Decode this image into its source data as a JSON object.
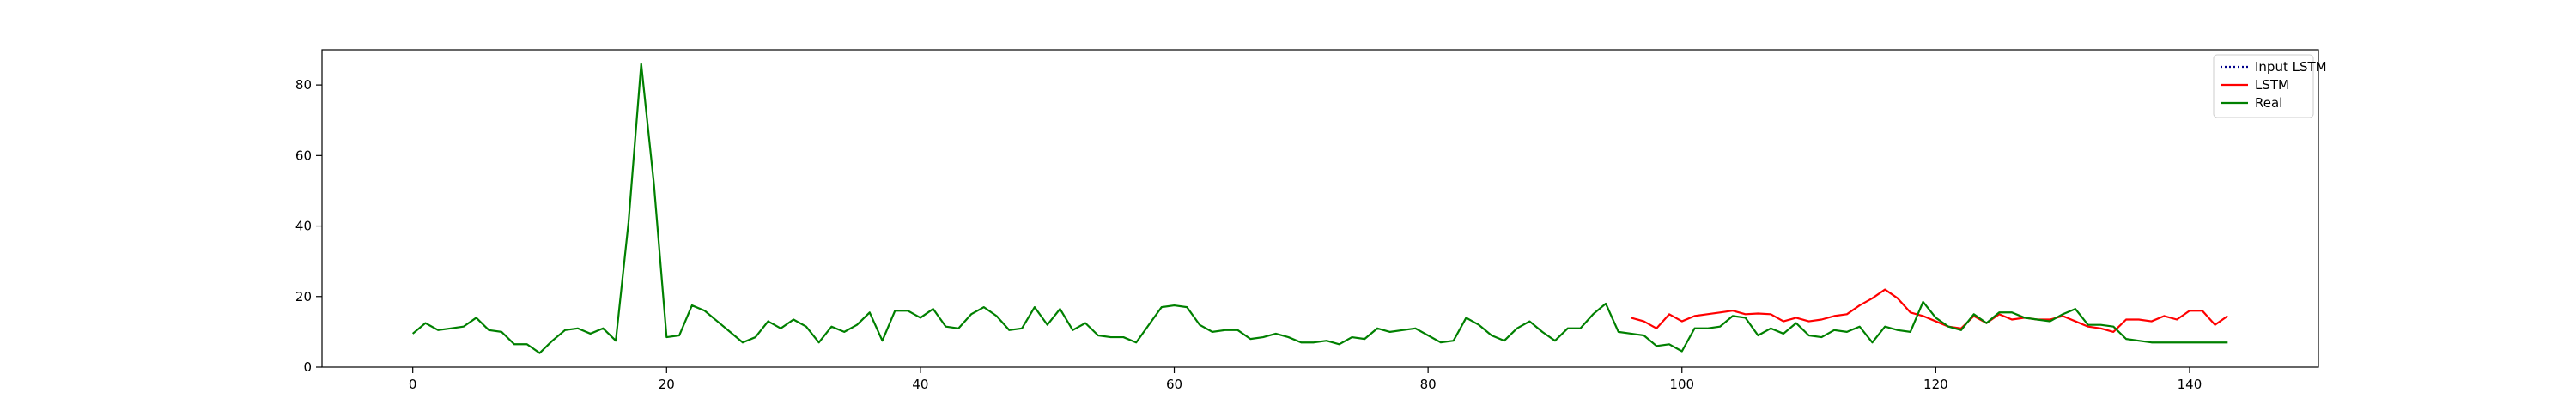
{
  "chart_data": {
    "type": "line",
    "title": "",
    "xlabel": "",
    "ylabel": "",
    "xlim": [
      -7.15,
      150.15
    ],
    "ylim": [
      0,
      90
    ],
    "xticks": [
      0,
      20,
      40,
      60,
      80,
      100,
      120,
      140
    ],
    "yticks": [
      0,
      20,
      40,
      60,
      80
    ],
    "grid": false,
    "legend_position": "top-right",
    "series": [
      {
        "name": "Input LSTM",
        "color": "#00008b",
        "line_style": "dotted",
        "x": [],
        "y": []
      },
      {
        "name": "LSTM",
        "color": "#ff0000",
        "line_style": "solid",
        "x": [
          96,
          97,
          98,
          99,
          100,
          101,
          102,
          103,
          104,
          105,
          106,
          107,
          108,
          109,
          110,
          111,
          112,
          113,
          114,
          115,
          116,
          117,
          118,
          119,
          120,
          121,
          122,
          123,
          124,
          125,
          126,
          127,
          128,
          129,
          130,
          131,
          132,
          133,
          134,
          135,
          136,
          137,
          138,
          139,
          140,
          141,
          142,
          143
        ],
        "y": [
          14,
          13,
          11,
          15,
          13,
          14.5,
          15,
          15.5,
          16,
          15,
          15.2,
          15,
          13,
          14,
          13,
          13.5,
          14.5,
          15,
          17.5,
          19.5,
          22,
          19.5,
          15.5,
          14.5,
          13,
          11.5,
          11,
          14.5,
          12.5,
          15,
          13.5,
          14,
          13.5,
          13.5,
          14.5,
          13,
          11.5,
          11,
          10,
          13.5,
          13.5,
          13,
          14.5,
          13.5,
          16,
          16,
          12,
          14.5
        ]
      },
      {
        "name": "Real",
        "color": "#008000",
        "line_style": "solid",
        "x": [
          0,
          1,
          2,
          3,
          4,
          5,
          6,
          7,
          8,
          9,
          10,
          11,
          12,
          13,
          14,
          15,
          16,
          17,
          18,
          19,
          20,
          21,
          22,
          23,
          24,
          25,
          26,
          27,
          28,
          29,
          30,
          31,
          32,
          33,
          34,
          35,
          36,
          37,
          38,
          39,
          40,
          41,
          42,
          43,
          44,
          45,
          46,
          47,
          48,
          49,
          50,
          51,
          52,
          53,
          54,
          55,
          56,
          57,
          58,
          59,
          60,
          61,
          62,
          63,
          64,
          65,
          66,
          67,
          68,
          69,
          70,
          71,
          72,
          73,
          74,
          75,
          76,
          77,
          78,
          79,
          80,
          81,
          82,
          83,
          84,
          85,
          86,
          87,
          88,
          89,
          90,
          91,
          92,
          93,
          94,
          95,
          96,
          97,
          98,
          99,
          100,
          101,
          102,
          103,
          104,
          105,
          106,
          107,
          108,
          109,
          110,
          111,
          112,
          113,
          114,
          115,
          116,
          117,
          118,
          119,
          120,
          121,
          122,
          123,
          124,
          125,
          126,
          127,
          128,
          129,
          130,
          131,
          132,
          133,
          134,
          135,
          136,
          137,
          138,
          139,
          140,
          141,
          142,
          143
        ],
        "y": [
          9.5,
          12.5,
          10.5,
          11,
          11.5,
          14,
          10.5,
          10,
          6.5,
          6.5,
          4,
          7.5,
          10.5,
          11,
          9.5,
          11,
          7.5,
          41,
          86,
          52,
          8.5,
          9,
          17.5,
          16,
          13,
          10,
          7,
          8.5,
          13,
          11,
          13.5,
          11.5,
          7,
          11.5,
          10,
          12,
          15.5,
          7.5,
          16,
          16,
          14,
          16.5,
          11.5,
          11,
          15,
          17,
          14.5,
          10.5,
          11,
          17,
          12,
          16.5,
          10.5,
          12.5,
          9,
          8.5,
          8.5,
          7,
          12,
          17,
          17.5,
          17,
          12,
          10,
          10.5,
          10.5,
          8,
          8.5,
          9.5,
          8.5,
          7,
          7,
          7.5,
          6.5,
          8.5,
          8,
          11,
          10,
          10.5,
          11,
          9,
          7,
          7.5,
          14,
          12,
          9,
          7.5,
          11,
          13,
          10,
          7.5,
          11,
          11,
          15,
          18,
          10,
          9.5,
          9,
          6,
          6.5,
          4.5,
          11,
          11,
          11.5,
          14.5,
          14,
          9,
          11,
          9.5,
          12.5,
          9,
          8.5,
          10.5,
          10,
          11.5,
          7,
          11.5,
          10.5,
          10,
          18.5,
          14,
          11.5,
          10.5,
          15,
          12.5,
          15.5,
          15.5,
          14,
          13.5,
          13,
          15,
          16.5,
          12,
          12,
          11.5,
          8,
          7.5,
          7,
          7,
          7,
          7,
          7,
          7,
          7
        ]
      }
    ]
  }
}
